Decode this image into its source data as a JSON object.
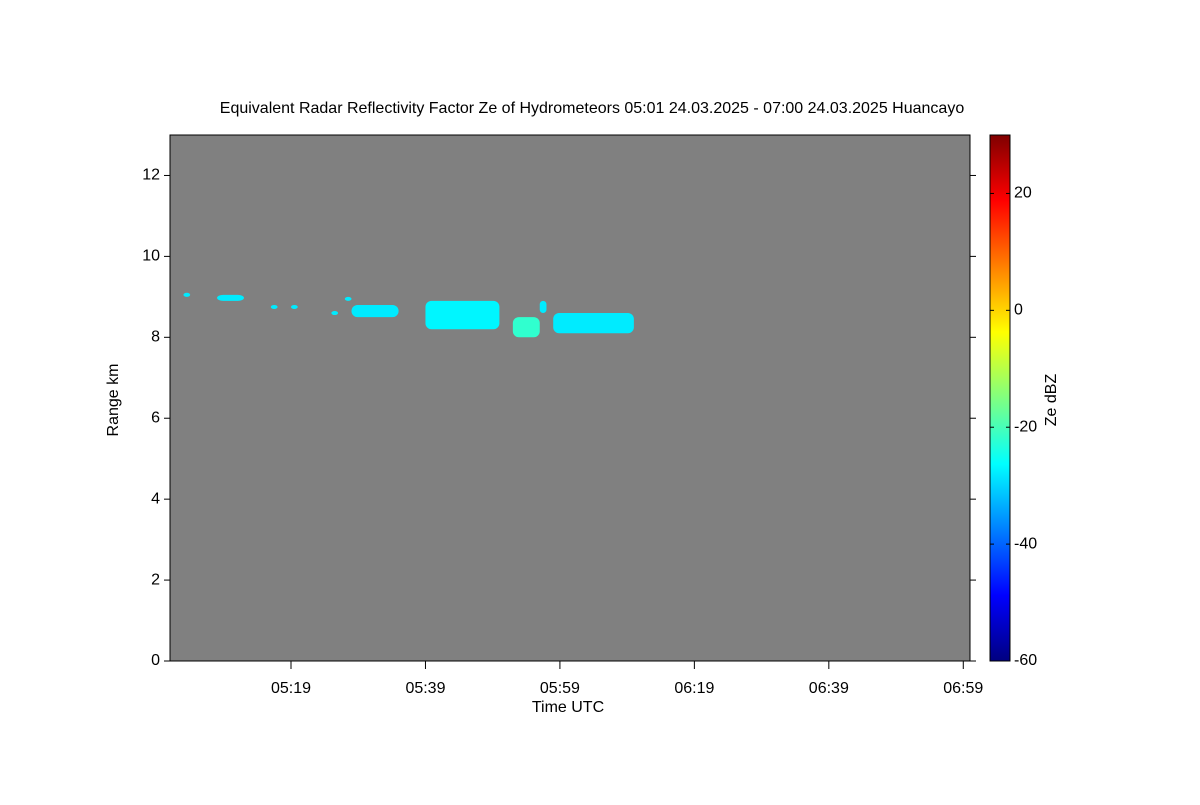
{
  "chart_data": {
    "type": "heatmap",
    "title": "Equivalent Radar Reflectivity Factor Ze of Hydrometeors   05:01 24.03.2025 - 07:00 24.03.2025 Huancayo",
    "x_label": "Time UTC",
    "y_label": "Range km",
    "colorbar_label": "Ze dBZ",
    "background": "#808080",
    "xlim": [
      "05:01",
      "07:00"
    ],
    "xticks": [
      "05:19",
      "05:39",
      "05:59",
      "06:19",
      "06:39",
      "06:59"
    ],
    "ylim": [
      0,
      13
    ],
    "yticks": [
      0,
      2,
      4,
      6,
      8,
      10,
      12
    ],
    "zlim": [
      -60,
      30
    ],
    "zticks": [
      -60,
      -40,
      -20,
      0,
      20
    ],
    "echoes": [
      {
        "start": "05:03",
        "end": "05:04",
        "bottom": 9.0,
        "top": 9.1,
        "ze": -28
      },
      {
        "start": "05:08",
        "end": "05:12",
        "bottom": 8.9,
        "top": 9.05,
        "ze": -28
      },
      {
        "start": "05:16",
        "end": "05:17",
        "bottom": 8.7,
        "top": 8.8,
        "ze": -28
      },
      {
        "start": "05:19",
        "end": "05:20",
        "bottom": 8.7,
        "top": 8.8,
        "ze": -28
      },
      {
        "start": "05:25",
        "end": "05:26",
        "bottom": 8.55,
        "top": 8.65,
        "ze": -28
      },
      {
        "start": "05:27",
        "end": "05:28",
        "bottom": 8.9,
        "top": 9.0,
        "ze": -28
      },
      {
        "start": "05:28",
        "end": "05:35",
        "bottom": 8.5,
        "top": 8.8,
        "ze": -28
      },
      {
        "start": "05:39",
        "end": "05:50",
        "bottom": 8.2,
        "top": 8.9,
        "ze": -27
      },
      {
        "start": "05:52",
        "end": "05:56",
        "bottom": 8.0,
        "top": 8.5,
        "ze": -22
      },
      {
        "start": "05:56",
        "end": "05:57",
        "bottom": 8.6,
        "top": 8.9,
        "ze": -28
      },
      {
        "start": "05:58",
        "end": "06:10",
        "bottom": 8.1,
        "top": 8.6,
        "ze": -28
      }
    ]
  }
}
